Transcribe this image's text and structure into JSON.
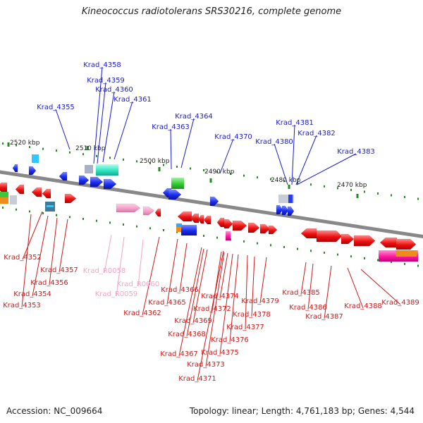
{
  "title": "Kineococcus radiotolerans SRS30216, complete genome",
  "footer": {
    "accession": "Accession: NC_009664",
    "topology": "Topology: linear; Length: 4,761,183 bp; Genes: 4,544"
  },
  "colors": {
    "top_label": "#1a1acc",
    "bottom_label": "#cc1a1a",
    "rna_label": "#f5a3c7",
    "backbone": "#888888",
    "tick": "#1e8c1e"
  },
  "scale_labels": [
    "2520 kbp",
    "2510 kbp",
    "2500 kbp",
    "2490 kbp",
    "2480 kbp",
    "2470 kbp"
  ],
  "top_genes": [
    "Krad_4355",
    "Krad_4358",
    "Krad_4359",
    "Krad_4360",
    "Krad_4361",
    "Krad_4363",
    "Krad_4364",
    "Krad_4370",
    "Krad_4380",
    "Krad_4381",
    "Krad_4382",
    "Krad_4383"
  ],
  "bottom_genes": [
    "Krad_4352",
    "Krad_4353",
    "Krad_4354",
    "Krad_4356",
    "Krad_4357",
    "Krad_4362",
    "Krad_4365",
    "Krad_4366",
    "Krad_4367",
    "Krad_4368",
    "Krad_4369",
    "Krad_4371",
    "Krad_4372",
    "Krad_4373",
    "Krad_4374",
    "Krad_4375",
    "Krad_4376",
    "Krad_4377",
    "Krad_4378",
    "Krad_4379",
    "Krad_4385",
    "Krad_4386",
    "Krad_4387",
    "Krad_4388",
    "Krad_4389"
  ],
  "rna_genes": [
    "Krad_R0058",
    "Krad_R0059",
    "Krad_R0060"
  ]
}
